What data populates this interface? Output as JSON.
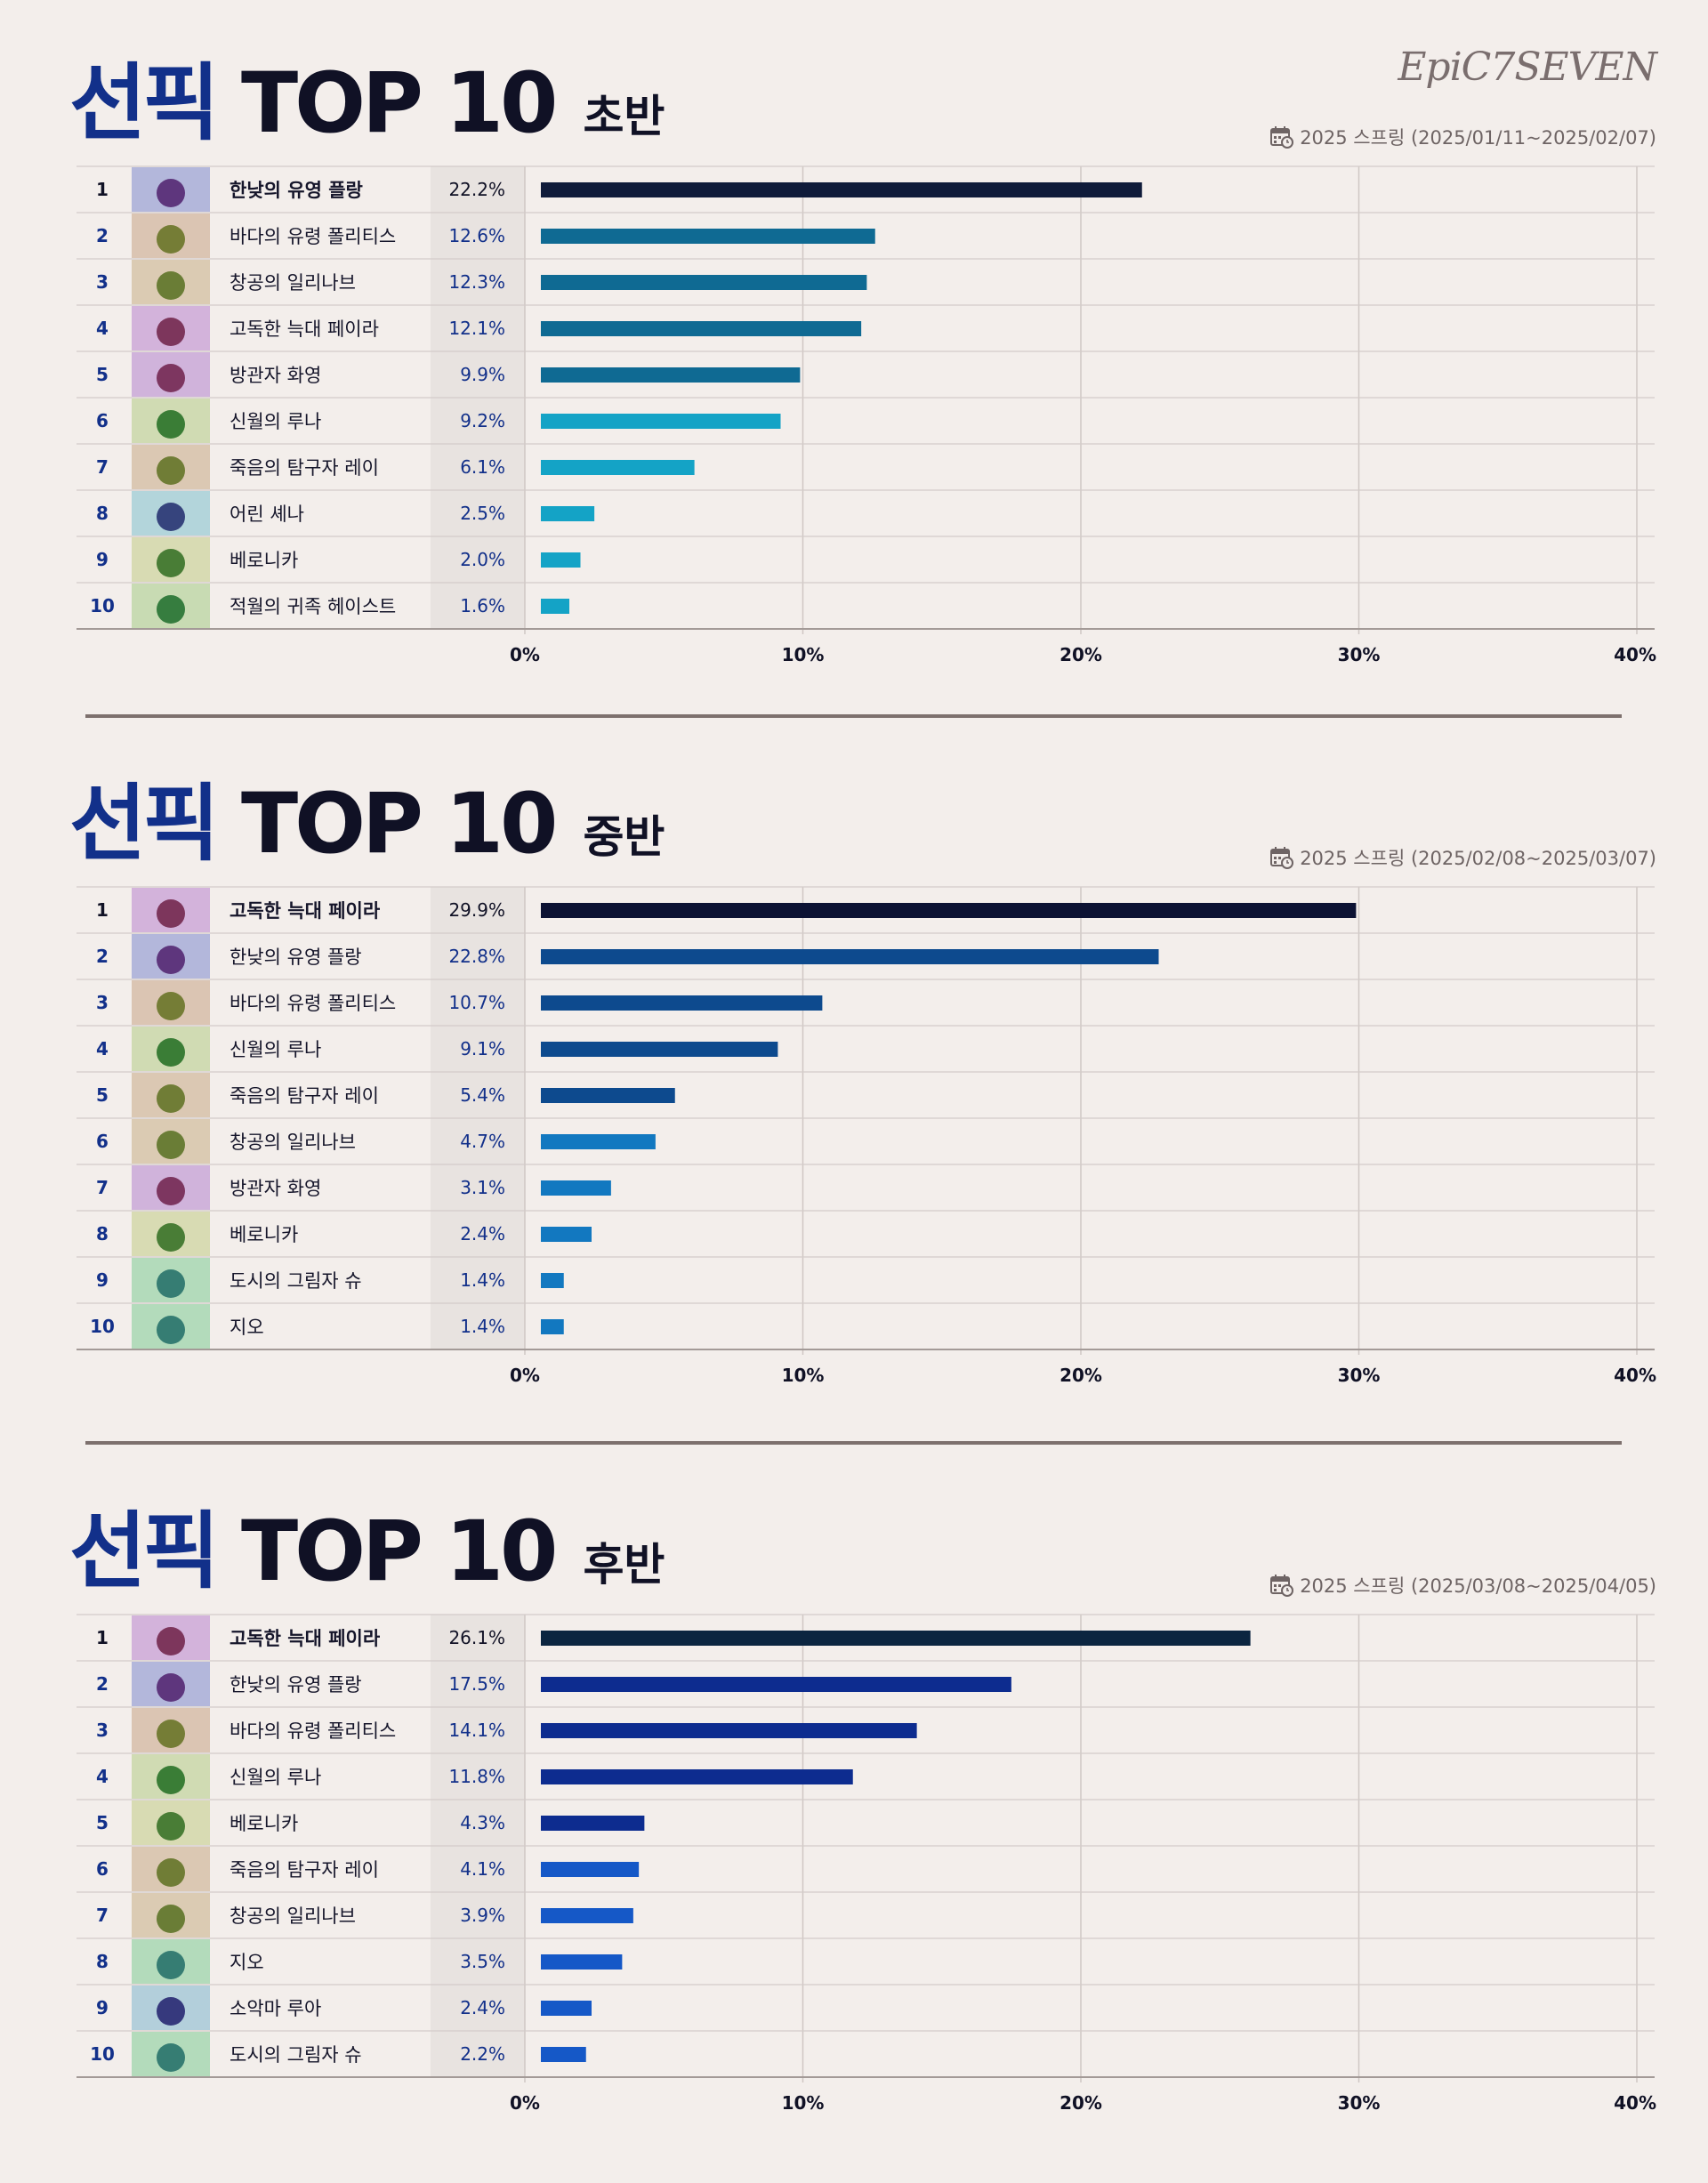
{
  "logo": "EpiC7SEVEN",
  "sections": [
    {
      "title_pick": "선픽",
      "title_top": "TOP 10",
      "title_period": "초반",
      "date": "2025 스프링 (2025/01/11~2025/02/07)"
    },
    {
      "title_pick": "선픽",
      "title_top": "TOP 10",
      "title_period": "중반",
      "date": "2025 스프링 (2025/02/08~2025/03/07)"
    },
    {
      "title_pick": "선픽",
      "title_top": "TOP 10",
      "title_period": "후반",
      "date": "2025 스프링 (2025/03/08~2025/04/05)"
    }
  ],
  "chart_data": [
    {
      "type": "bar",
      "orientation": "horizontal",
      "ranks": [
        "1",
        "2",
        "3",
        "4",
        "5",
        "6",
        "7",
        "8",
        "9",
        "10"
      ],
      "categories": [
        "한낮의 유영 플랑",
        "바다의 유령 폴리티스",
        "창공의 일리나브",
        "고독한 늑대 페이라",
        "방관자 화영",
        "신월의 루나",
        "죽음의 탐구자 레이",
        "어린 셰나",
        "베로니카",
        "적월의 귀족 헤이스트"
      ],
      "value_labels": [
        "22.2%",
        "12.6%",
        "12.3%",
        "12.1%",
        "9.9%",
        "9.2%",
        "6.1%",
        "2.5%",
        "2.0%",
        "1.6%"
      ],
      "values": [
        22.2,
        12.6,
        12.3,
        12.1,
        9.9,
        9.2,
        6.1,
        2.5,
        2.0,
        1.6
      ],
      "bar_colors": [
        "#0f1b3a",
        "#0f6a93",
        "#0f6a93",
        "#0f6a93",
        "#0f6a93",
        "#14a3c6",
        "#14a3c6",
        "#14a3c6",
        "#14a3c6",
        "#14a3c6"
      ],
      "xlim": [
        0,
        40
      ],
      "xticks": [
        "0%",
        "10%",
        "20%",
        "30%",
        "40%"
      ],
      "grid": true
    },
    {
      "type": "bar",
      "orientation": "horizontal",
      "ranks": [
        "1",
        "2",
        "3",
        "4",
        "5",
        "6",
        "7",
        "8",
        "9",
        "10"
      ],
      "categories": [
        "고독한 늑대 페이라",
        "한낮의 유영 플랑",
        "바다의 유령 폴리티스",
        "신월의 루나",
        "죽음의 탐구자 레이",
        "창공의 일리나브",
        "방관자 화영",
        "베로니카",
        "도시의 그림자 슈",
        "지오"
      ],
      "value_labels": [
        "29.9%",
        "22.8%",
        "10.7%",
        "9.1%",
        "5.4%",
        "4.7%",
        "3.1%",
        "2.4%",
        "1.4%",
        "1.4%"
      ],
      "values": [
        29.9,
        22.8,
        10.7,
        9.1,
        5.4,
        4.7,
        3.1,
        2.4,
        1.4,
        1.4
      ],
      "bar_colors": [
        "#0c1233",
        "#0d4a8e",
        "#0d4a8e",
        "#0d4a8e",
        "#0d4a8e",
        "#1278c0",
        "#1278c0",
        "#1278c0",
        "#1278c0",
        "#1278c0"
      ],
      "xlim": [
        0,
        40
      ],
      "xticks": [
        "0%",
        "10%",
        "20%",
        "30%",
        "40%"
      ],
      "grid": true
    },
    {
      "type": "bar",
      "orientation": "horizontal",
      "ranks": [
        "1",
        "2",
        "3",
        "4",
        "5",
        "6",
        "7",
        "8",
        "9",
        "10"
      ],
      "categories": [
        "고독한 늑대 페이라",
        "한낮의 유영 플랑",
        "바다의 유령 폴리티스",
        "신월의 루나",
        "베로니카",
        "죽음의 탐구자 레이",
        "창공의 일리나브",
        "지오",
        "소악마 루아",
        "도시의 그림자 슈"
      ],
      "value_labels": [
        "26.1%",
        "17.5%",
        "14.1%",
        "11.8%",
        "4.3%",
        "4.1%",
        "3.9%",
        "3.5%",
        "2.4%",
        "2.2%"
      ],
      "values": [
        26.1,
        17.5,
        14.1,
        11.8,
        4.3,
        4.1,
        3.9,
        3.5,
        2.4,
        2.2
      ],
      "bar_colors": [
        "#0b2540",
        "#0d2c8f",
        "#0d2c8f",
        "#0d2c8f",
        "#0d2c8f",
        "#1558c7",
        "#1558c7",
        "#1558c7",
        "#1558c7",
        "#1558c7"
      ],
      "xlim": [
        0,
        40
      ],
      "xticks": [
        "0%",
        "10%",
        "20%",
        "30%",
        "40%"
      ],
      "grid": true
    }
  ]
}
